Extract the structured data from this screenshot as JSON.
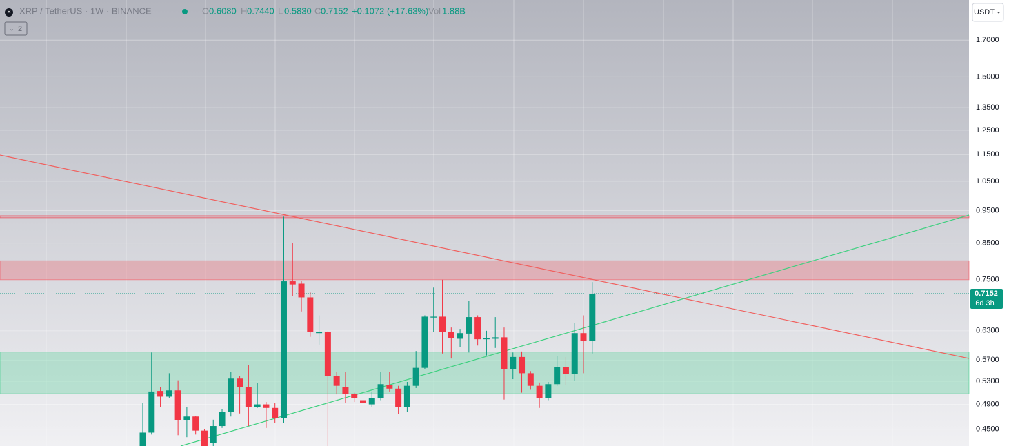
{
  "header": {
    "symbol": "XRP / TetherUS · 1W · BINANCE",
    "open_label": "O",
    "open": "0.6080",
    "high_label": "H",
    "high": "0.7440",
    "low_label": "L",
    "low": "0.5830",
    "close_label": "C",
    "close": "0.7152",
    "change": "+0.1072 (+17.63%)",
    "volume_label": "Vol",
    "volume": "1.88B",
    "indicators": "2",
    "currency": "USDT"
  },
  "chart_data": {
    "type": "candlestick",
    "open": [
      0.41,
      0.445,
      0.513,
      0.503,
      0.514,
      0.464,
      0.47,
      0.448,
      0.43,
      0.455,
      0.477,
      0.535,
      0.52,
      0.485,
      0.49,
      0.484,
      0.468,
      0.746,
      0.74,
      0.706,
      0.625,
      0.628,
      0.54,
      0.52,
      0.508,
      0.497,
      0.49,
      0.5,
      0.524,
      0.517,
      0.486,
      0.522,
      0.555,
      0.659,
      0.661,
      0.627,
      0.613,
      0.624,
      0.66,
      0.612,
      0.613,
      0.616,
      0.553,
      0.576,
      0.545,
      0.522,
      0.5,
      0.525,
      0.557,
      0.543,
      0.625,
      0.608
    ],
    "high": [
      0.492,
      0.585,
      0.52,
      0.545,
      0.532,
      0.486,
      0.471,
      0.45,
      0.465,
      0.482,
      0.547,
      0.54,
      0.561,
      0.527,
      0.494,
      0.492,
      0.93,
      0.85,
      0.746,
      0.72,
      0.664,
      0.629,
      0.548,
      0.548,
      0.51,
      0.504,
      0.512,
      0.547,
      0.547,
      0.522,
      0.529,
      0.588,
      0.664,
      0.73,
      0.75,
      0.637,
      0.634,
      0.698,
      0.664,
      0.63,
      0.66,
      0.637,
      0.585,
      0.587,
      0.549,
      0.528,
      0.529,
      0.578,
      0.576,
      0.647,
      0.664,
      0.744
    ],
    "low": [
      0.4,
      0.442,
      0.486,
      0.5,
      0.441,
      0.438,
      0.442,
      0.41,
      0.41,
      0.452,
      0.47,
      0.475,
      0.455,
      0.484,
      0.452,
      0.46,
      0.46,
      0.71,
      0.673,
      0.617,
      0.601,
      0.42,
      0.507,
      0.493,
      0.494,
      0.46,
      0.486,
      0.497,
      0.512,
      0.474,
      0.477,
      0.518,
      0.552,
      0.627,
      0.583,
      0.573,
      0.596,
      0.585,
      0.599,
      0.579,
      0.594,
      0.498,
      0.534,
      0.51,
      0.515,
      0.484,
      0.497,
      0.522,
      0.524,
      0.531,
      0.545,
      0.583
    ],
    "close": [
      0.445,
      0.512,
      0.503,
      0.514,
      0.464,
      0.47,
      0.448,
      0.425,
      0.455,
      0.477,
      0.535,
      0.52,
      0.485,
      0.49,
      0.484,
      0.468,
      0.746,
      0.738,
      0.706,
      0.628,
      0.628,
      0.54,
      0.522,
      0.508,
      0.5,
      0.493,
      0.5,
      0.525,
      0.517,
      0.486,
      0.522,
      0.555,
      0.661,
      0.661,
      0.627,
      0.614,
      0.625,
      0.66,
      0.612,
      0.614,
      0.616,
      0.553,
      0.576,
      0.545,
      0.522,
      0.5,
      0.525,
      0.557,
      0.543,
      0.625,
      0.608,
      0.7152
    ],
    "up_color": "#089981",
    "down_color": "#f23645",
    "log_scale": true,
    "ylim": [
      0.425,
      1.95
    ],
    "yticks": [
      {
        "value": 0.45,
        "label": "0.4500"
      },
      {
        "value": 0.49,
        "label": "0.4900"
      },
      {
        "value": 0.53,
        "label": "0.5300"
      },
      {
        "value": 0.57,
        "label": "0.5700"
      },
      {
        "value": 0.63,
        "label": "0.6300"
      },
      {
        "value": 0.75,
        "label": "0.7500"
      },
      {
        "value": 0.85,
        "label": "0.8500"
      },
      {
        "value": 0.95,
        "label": "0.9500"
      },
      {
        "value": 1.05,
        "label": "1.0500"
      },
      {
        "value": 1.15,
        "label": "1.1500"
      },
      {
        "value": 1.25,
        "label": "1.2500"
      },
      {
        "value": 1.35,
        "label": "1.3500"
      },
      {
        "value": 1.5,
        "label": "1.5000"
      },
      {
        "value": 1.7,
        "label": "1.7000"
      }
    ],
    "grid": true,
    "last_price": {
      "value": 0.7152,
      "label": "0.7152",
      "countdown": "6d 3h"
    },
    "zones": [
      {
        "low": 0.75,
        "high": 0.8,
        "color": "#f23645"
      },
      {
        "low": 0.508,
        "high": 0.586,
        "color": "#22c77a"
      }
    ],
    "levels": [
      {
        "value": 0.93,
        "color": "#f23645"
      }
    ]
  }
}
